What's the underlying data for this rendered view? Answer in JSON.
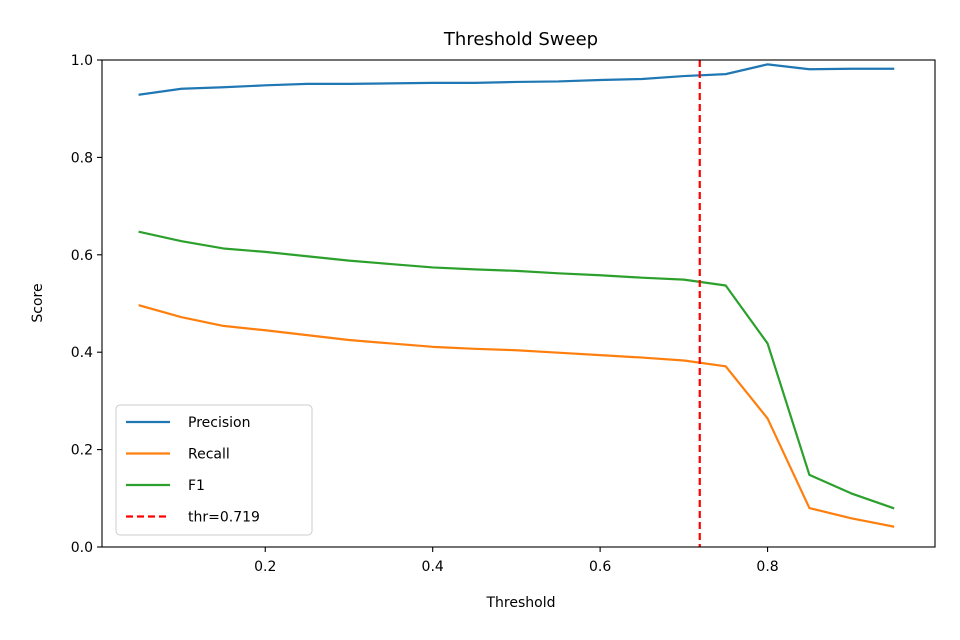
{
  "chart_data": {
    "type": "line",
    "title": "Threshold Sweep",
    "xlabel": "Threshold",
    "ylabel": "Score",
    "xlim": [
      0.005,
      1.0
    ],
    "ylim": [
      0.0,
      1.0
    ],
    "grid": false,
    "legend_position": "lower-left",
    "x_ticks": [
      0.2,
      0.4,
      0.6,
      0.8
    ],
    "x_tick_labels": [
      "0.2",
      "0.4",
      "0.6",
      "0.8"
    ],
    "y_ticks": [
      0.0,
      0.2,
      0.4,
      0.6,
      0.8,
      1.0
    ],
    "y_tick_labels": [
      "0.0",
      "0.2",
      "0.4",
      "0.6",
      "0.8",
      "1.0"
    ],
    "x": [
      0.05,
      0.1,
      0.15,
      0.2,
      0.25,
      0.3,
      0.35,
      0.4,
      0.45,
      0.5,
      0.55,
      0.6,
      0.65,
      0.7,
      0.75,
      0.8,
      0.85,
      0.9,
      0.95
    ],
    "series": [
      {
        "name": "Precision",
        "color": "#1f77b4",
        "values": [
          0.929,
          0.941,
          0.944,
          0.948,
          0.951,
          0.951,
          0.952,
          0.953,
          0.953,
          0.955,
          0.956,
          0.959,
          0.961,
          0.967,
          0.971,
          0.991,
          0.981,
          0.982,
          0.982
        ]
      },
      {
        "name": "Recall",
        "color": "#ff7f0e",
        "values": [
          0.496,
          0.472,
          0.454,
          0.445,
          0.435,
          0.425,
          0.418,
          0.411,
          0.407,
          0.404,
          0.399,
          0.394,
          0.389,
          0.383,
          0.371,
          0.264,
          0.08,
          0.059,
          0.042
        ]
      },
      {
        "name": "F1",
        "color": "#2ca02c",
        "values": [
          0.647,
          0.628,
          0.613,
          0.606,
          0.597,
          0.588,
          0.581,
          0.574,
          0.57,
          0.567,
          0.562,
          0.558,
          0.553,
          0.549,
          0.537,
          0.418,
          0.148,
          0.11,
          0.08
        ]
      }
    ],
    "reference_lines": [
      {
        "name": "thr=0.719",
        "orientation": "vertical",
        "x": 0.719,
        "color": "#ff0000",
        "style": "dashed"
      }
    ]
  }
}
